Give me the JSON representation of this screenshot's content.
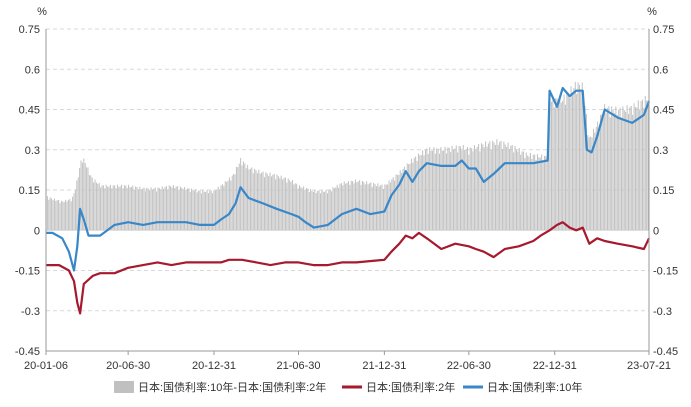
{
  "chart_data": {
    "type": "bar-line-combo",
    "y_unit_left": "%",
    "y_unit_right": "%",
    "ylim": [
      -0.45,
      0.75
    ],
    "yticks": [
      -0.45,
      -0.3,
      -0.15,
      0,
      0.15,
      0.3,
      0.45,
      0.6,
      0.75
    ],
    "ytick_labels": [
      "-0.45",
      "-0.3",
      "-0.15",
      "0",
      "0.15",
      "0.3",
      "0.45",
      "0.6",
      "0.75"
    ],
    "x_start": "2020-01-06",
    "x_end": "2023-07-21",
    "xtick_dates": [
      "2020-01-06",
      "2020-06-30",
      "2020-12-31",
      "2021-06-30",
      "2021-12-31",
      "2022-06-30",
      "2022-12-31",
      "2023-07-21"
    ],
    "xtick_labels": [
      "20-01-06",
      "20-06-30",
      "20-12-31",
      "21-06-30",
      "21-12-31",
      "22-06-30",
      "22-12-31",
      "23-07-21"
    ],
    "grid": "horizontal-dashed",
    "legend_position": "bottom",
    "series": [
      {
        "name": "日本:国债利率:10年-日本:国债利率:2年",
        "kind": "bar",
        "color": "#c0c0c0",
        "points": [
          [
            "2020-01-06",
            0.13
          ],
          [
            "2020-01-20",
            0.12
          ],
          [
            "2020-02-10",
            0.11
          ],
          [
            "2020-03-02",
            0.12
          ],
          [
            "2020-03-09",
            0.16
          ],
          [
            "2020-03-16",
            0.22
          ],
          [
            "2020-03-23",
            0.28
          ],
          [
            "2020-03-30",
            0.26
          ],
          [
            "2020-04-13",
            0.2
          ],
          [
            "2020-05-04",
            0.17
          ],
          [
            "2020-06-01",
            0.17
          ],
          [
            "2020-06-30",
            0.17
          ],
          [
            "2020-08-03",
            0.16
          ],
          [
            "2020-09-01",
            0.16
          ],
          [
            "2020-10-01",
            0.17
          ],
          [
            "2020-11-02",
            0.16
          ],
          [
            "2020-12-01",
            0.15
          ],
          [
            "2020-12-31",
            0.15
          ],
          [
            "2021-01-15",
            0.17
          ],
          [
            "2021-02-10",
            0.21
          ],
          [
            "2021-02-26",
            0.27
          ],
          [
            "2021-03-15",
            0.24
          ],
          [
            "2021-04-15",
            0.22
          ],
          [
            "2021-05-14",
            0.21
          ],
          [
            "2021-06-15",
            0.19
          ],
          [
            "2021-06-30",
            0.17
          ],
          [
            "2021-08-02",
            0.15
          ],
          [
            "2021-09-01",
            0.15
          ],
          [
            "2021-10-01",
            0.18
          ],
          [
            "2021-11-01",
            0.19
          ],
          [
            "2021-12-01",
            0.18
          ],
          [
            "2021-12-31",
            0.17
          ],
          [
            "2022-02-01",
            0.22
          ],
          [
            "2022-03-01",
            0.27
          ],
          [
            "2022-04-01",
            0.31
          ],
          [
            "2022-05-02",
            0.31
          ],
          [
            "2022-06-15",
            0.32
          ],
          [
            "2022-06-30",
            0.31
          ],
          [
            "2022-08-01",
            0.33
          ],
          [
            "2022-09-01",
            0.34
          ],
          [
            "2022-10-03",
            0.32
          ],
          [
            "2022-11-01",
            0.29
          ],
          [
            "2022-12-16",
            0.28
          ],
          [
            "2022-12-20",
            0.5
          ],
          [
            "2023-01-16",
            0.5
          ],
          [
            "2023-02-01",
            0.53
          ],
          [
            "2023-02-15",
            0.56
          ],
          [
            "2023-03-01",
            0.55
          ],
          [
            "2023-03-15",
            0.35
          ],
          [
            "2023-03-31",
            0.4
          ],
          [
            "2023-04-17",
            0.47
          ],
          [
            "2023-05-15",
            0.46
          ],
          [
            "2023-06-15",
            0.47
          ],
          [
            "2023-07-21",
            0.51
          ]
        ]
      },
      {
        "name": "日本:国债利率:2年",
        "kind": "line",
        "color": "#a6192e",
        "points": [
          [
            "2020-01-06",
            -0.13
          ],
          [
            "2020-02-03",
            -0.13
          ],
          [
            "2020-02-24",
            -0.15
          ],
          [
            "2020-03-06",
            -0.19
          ],
          [
            "2020-03-13",
            -0.27
          ],
          [
            "2020-03-19",
            -0.31
          ],
          [
            "2020-03-27",
            -0.2
          ],
          [
            "2020-04-15",
            -0.17
          ],
          [
            "2020-05-01",
            -0.16
          ],
          [
            "2020-06-01",
            -0.16
          ],
          [
            "2020-06-30",
            -0.14
          ],
          [
            "2020-08-01",
            -0.13
          ],
          [
            "2020-09-01",
            -0.12
          ],
          [
            "2020-10-01",
            -0.13
          ],
          [
            "2020-11-01",
            -0.12
          ],
          [
            "2020-12-31",
            -0.12
          ],
          [
            "2021-01-15",
            -0.12
          ],
          [
            "2021-02-01",
            -0.11
          ],
          [
            "2021-03-01",
            -0.11
          ],
          [
            "2021-04-01",
            -0.12
          ],
          [
            "2021-05-01",
            -0.13
          ],
          [
            "2021-06-01",
            -0.12
          ],
          [
            "2021-06-30",
            -0.12
          ],
          [
            "2021-08-01",
            -0.13
          ],
          [
            "2021-09-01",
            -0.13
          ],
          [
            "2021-10-01",
            -0.12
          ],
          [
            "2021-11-01",
            -0.12
          ],
          [
            "2021-12-31",
            -0.11
          ],
          [
            "2022-01-15",
            -0.08
          ],
          [
            "2022-02-01",
            -0.05
          ],
          [
            "2022-02-15",
            -0.02
          ],
          [
            "2022-03-01",
            -0.03
          ],
          [
            "2022-03-15",
            -0.01
          ],
          [
            "2022-04-01",
            -0.03
          ],
          [
            "2022-05-02",
            -0.07
          ],
          [
            "2022-06-01",
            -0.05
          ],
          [
            "2022-06-30",
            -0.06
          ],
          [
            "2022-07-15",
            -0.07
          ],
          [
            "2022-08-01",
            -0.08
          ],
          [
            "2022-08-22",
            -0.1
          ],
          [
            "2022-09-15",
            -0.07
          ],
          [
            "2022-10-15",
            -0.06
          ],
          [
            "2022-11-15",
            -0.04
          ],
          [
            "2022-12-01",
            -0.02
          ],
          [
            "2022-12-20",
            0.0
          ],
          [
            "2023-01-05",
            0.02
          ],
          [
            "2023-01-17",
            0.03
          ],
          [
            "2023-02-01",
            0.01
          ],
          [
            "2023-02-15",
            0.0
          ],
          [
            "2023-03-01",
            0.01
          ],
          [
            "2023-03-15",
            -0.05
          ],
          [
            "2023-04-01",
            -0.03
          ],
          [
            "2023-04-17",
            -0.04
          ],
          [
            "2023-05-15",
            -0.05
          ],
          [
            "2023-06-15",
            -0.06
          ],
          [
            "2023-07-10",
            -0.07
          ],
          [
            "2023-07-21",
            -0.03
          ]
        ]
      },
      {
        "name": "日本:国债利率:10年",
        "kind": "line",
        "color": "#3a87c8",
        "points": [
          [
            "2020-01-06",
            -0.01
          ],
          [
            "2020-01-20",
            -0.01
          ],
          [
            "2020-02-10",
            -0.03
          ],
          [
            "2020-02-24",
            -0.08
          ],
          [
            "2020-03-06",
            -0.15
          ],
          [
            "2020-03-13",
            -0.06
          ],
          [
            "2020-03-19",
            0.08
          ],
          [
            "2020-03-27",
            0.04
          ],
          [
            "2020-04-06",
            -0.02
          ],
          [
            "2020-05-01",
            -0.02
          ],
          [
            "2020-06-01",
            0.02
          ],
          [
            "2020-06-30",
            0.03
          ],
          [
            "2020-08-01",
            0.02
          ],
          [
            "2020-09-01",
            0.03
          ],
          [
            "2020-10-01",
            0.03
          ],
          [
            "2020-11-01",
            0.03
          ],
          [
            "2020-12-01",
            0.02
          ],
          [
            "2020-12-31",
            0.02
          ],
          [
            "2021-01-15",
            0.04
          ],
          [
            "2021-02-01",
            0.06
          ],
          [
            "2021-02-15",
            0.1
          ],
          [
            "2021-02-26",
            0.16
          ],
          [
            "2021-03-15",
            0.12
          ],
          [
            "2021-04-15",
            0.1
          ],
          [
            "2021-05-14",
            0.08
          ],
          [
            "2021-06-15",
            0.06
          ],
          [
            "2021-06-30",
            0.05
          ],
          [
            "2021-07-15",
            0.03
          ],
          [
            "2021-08-02",
            0.01
          ],
          [
            "2021-09-01",
            0.02
          ],
          [
            "2021-10-01",
            0.06
          ],
          [
            "2021-11-01",
            0.08
          ],
          [
            "2021-12-01",
            0.06
          ],
          [
            "2021-12-31",
            0.07
          ],
          [
            "2022-01-15",
            0.13
          ],
          [
            "2022-02-01",
            0.17
          ],
          [
            "2022-02-15",
            0.22
          ],
          [
            "2022-03-01",
            0.18
          ],
          [
            "2022-03-15",
            0.22
          ],
          [
            "2022-04-01",
            0.25
          ],
          [
            "2022-05-02",
            0.24
          ],
          [
            "2022-06-01",
            0.24
          ],
          [
            "2022-06-15",
            0.26
          ],
          [
            "2022-06-30",
            0.23
          ],
          [
            "2022-07-15",
            0.23
          ],
          [
            "2022-08-01",
            0.18
          ],
          [
            "2022-08-22",
            0.21
          ],
          [
            "2022-09-15",
            0.25
          ],
          [
            "2022-10-15",
            0.25
          ],
          [
            "2022-11-15",
            0.25
          ],
          [
            "2022-12-16",
            0.26
          ],
          [
            "2022-12-20",
            0.52
          ],
          [
            "2023-01-05",
            0.46
          ],
          [
            "2023-01-17",
            0.53
          ],
          [
            "2023-02-01",
            0.5
          ],
          [
            "2023-02-15",
            0.52
          ],
          [
            "2023-03-01",
            0.52
          ],
          [
            "2023-03-10",
            0.3
          ],
          [
            "2023-03-20",
            0.29
          ],
          [
            "2023-04-01",
            0.35
          ],
          [
            "2023-04-17",
            0.45
          ],
          [
            "2023-05-15",
            0.42
          ],
          [
            "2023-06-15",
            0.4
          ],
          [
            "2023-07-10",
            0.43
          ],
          [
            "2023-07-21",
            0.48
          ]
        ]
      }
    ]
  }
}
